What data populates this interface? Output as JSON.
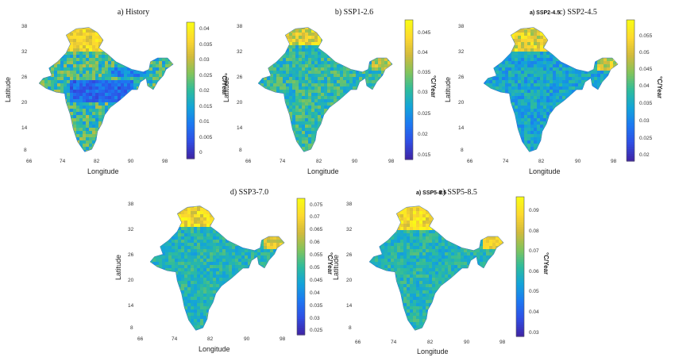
{
  "figure": {
    "xlabel": "Longitude",
    "ylabel": "Latitude",
    "x_ticks": [
      "66",
      "74",
      "82",
      "90",
      "98"
    ],
    "y_ticks": [
      "38",
      "32",
      "26",
      "20",
      "14",
      "8"
    ],
    "colormap": [
      "#3e26a8",
      "#2f4fe5",
      "#1c79f2",
      "#13a4d9",
      "#2ebc9c",
      "#82c45c",
      "#d2ba3c",
      "#fdd82f",
      "#f9fb15"
    ]
  },
  "panels": [
    {
      "id": "history",
      "title": "a) History",
      "overlay": "",
      "colorbar_label": "°C/Year",
      "colorbar_ticks": [
        "0.04",
        "0.035",
        "0.03",
        "0.025",
        "0.02",
        "0.015",
        "0.01",
        "0.005",
        "0"
      ],
      "clim": [
        -0.002,
        0.043
      ]
    },
    {
      "id": "ssp126",
      "title": "b) SSP1-2.6",
      "overlay": "",
      "colorbar_label": "°C/Year",
      "colorbar_ticks": [
        "0.045",
        "0.04",
        "0.035",
        "0.03",
        "0.025",
        "0.02",
        "0.015"
      ],
      "clim": [
        0.014,
        0.049
      ]
    },
    {
      "id": "ssp245",
      "title": "c) SSP2-4.5",
      "overlay": "a) SSP2-4.5",
      "colorbar_label": "°C/Year",
      "colorbar_ticks": [
        "0.055",
        "0.05",
        "0.045",
        "0.04",
        "0.035",
        "0.03",
        "0.025",
        "0.02"
      ],
      "clim": [
        0.019,
        0.06
      ]
    },
    {
      "id": "ssp370",
      "title": "d) SSP3-7.0",
      "overlay": "",
      "colorbar_label": "°C/Year",
      "colorbar_ticks": [
        "0.075",
        "0.07",
        "0.065",
        "0.06",
        "0.055",
        "0.05",
        "0.045",
        "0.04",
        "0.035",
        "0.03",
        "0.025"
      ],
      "clim": [
        0.023,
        0.078
      ]
    },
    {
      "id": "ssp585",
      "title": "e) SSP5-8.5",
      "overlay": "a) SSP5-8.5",
      "colorbar_label": "°C/Year",
      "colorbar_ticks": [
        "0.09",
        "0.08",
        "0.07",
        "0.06",
        "0.05",
        "0.04",
        "0.03"
      ],
      "clim": [
        0.029,
        0.095
      ]
    }
  ]
}
